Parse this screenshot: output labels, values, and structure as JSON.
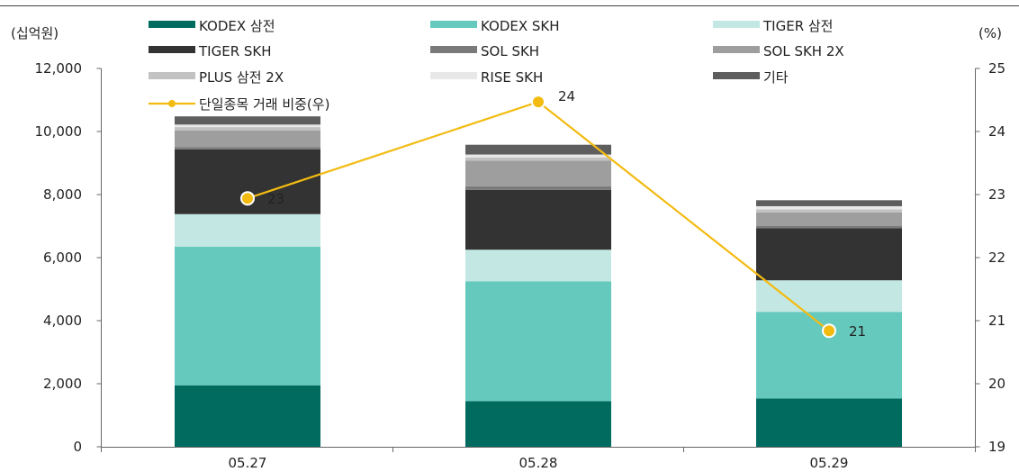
{
  "chart_data": {
    "type": "bar",
    "stacked": true,
    "categories": [
      "05.27",
      "05.28",
      "05.29"
    ],
    "y_left": {
      "unit_label": "(십억원)",
      "ylim": [
        0,
        12000
      ],
      "ticks": [
        "0",
        "2,000",
        "4,000",
        "6,000",
        "8,000",
        "10,000",
        "12,000"
      ]
    },
    "y_right": {
      "unit_label": "(%)",
      "ylim": [
        19,
        25
      ],
      "ticks": [
        "19",
        "20",
        "21",
        "22",
        "23",
        "24",
        "25"
      ]
    },
    "series": [
      {
        "name": "KODEX 삼전",
        "color": "#006b5e",
        "values": [
          1950,
          1450,
          1530
        ]
      },
      {
        "name": "KODEX SKH",
        "color": "#65c9bd",
        "values": [
          4400,
          3800,
          2750
        ]
      },
      {
        "name": "TIGER 삼전",
        "color": "#c3e8e3",
        "values": [
          1030,
          1000,
          1000
        ]
      },
      {
        "name": "TIGER SKH",
        "color": "#333333",
        "values": [
          2050,
          1900,
          1650
        ]
      },
      {
        "name": "SOL SKH",
        "color": "#7a7a7a",
        "values": [
          80,
          110,
          80
        ]
      },
      {
        "name": "SOL SKH 2X",
        "color": "#9e9e9e",
        "values": [
          520,
          820,
          420
        ]
      },
      {
        "name": "PLUS 삼전 2X",
        "color": "#c2c2c2",
        "values": [
          110,
          100,
          100
        ]
      },
      {
        "name": "RISE SKH",
        "color": "#e8e8e8",
        "values": [
          80,
          90,
          100
        ]
      },
      {
        "name": "기타",
        "color": "#5e5e5e",
        "values": [
          260,
          310,
          190
        ]
      }
    ],
    "line": {
      "name": "단일종목 거래 비중(우)",
      "color": "#f3bb12",
      "values": [
        22.94,
        24.47,
        20.84
      ],
      "labels": [
        "23",
        "24",
        "21"
      ]
    },
    "legend": "top",
    "grid": false
  }
}
